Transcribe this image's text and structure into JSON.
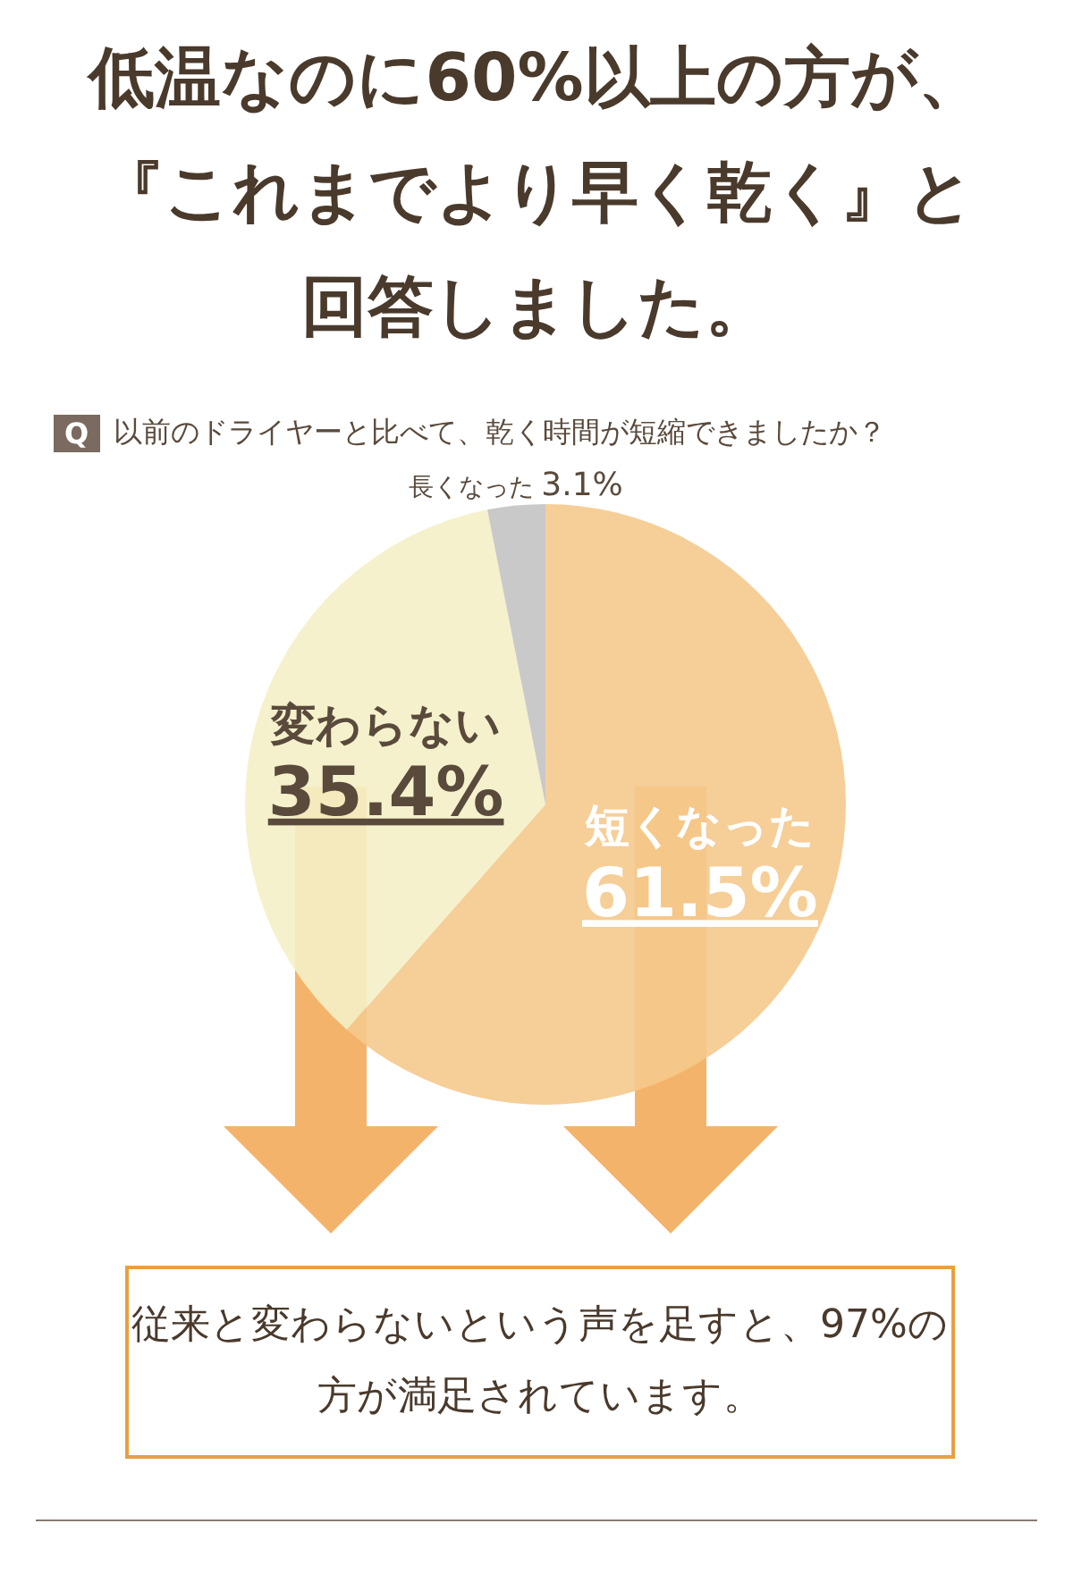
{
  "chart_data": {
    "type": "pie",
    "title": "低温なのに60%以上の方が、『これまでより早く乾く』と回答しました。",
    "categories": [
      "短くなった",
      "変わらない",
      "長くなった"
    ],
    "values": [
      61.5,
      35.4,
      3.1
    ],
    "value_labels": [
      "61.5%",
      "35.4%",
      "3.1%"
    ],
    "colors": [
      "#f5c98c",
      "#f4efc6",
      "#c3c3c3"
    ],
    "annotations": [
      "Q",
      "以前のドライヤーと比べて、乾く時間が短縮できましたか？",
      "従来と変わらないという声を足すと、97%の方が満足されています。"
    ]
  }
}
